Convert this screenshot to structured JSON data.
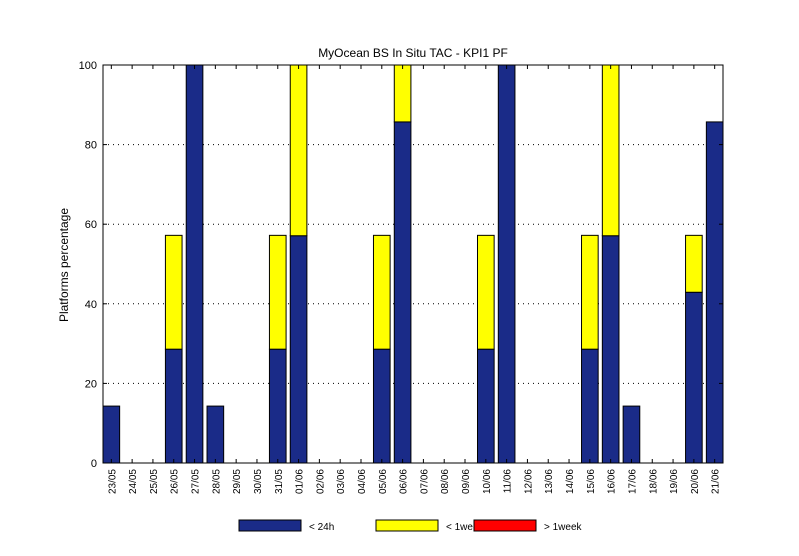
{
  "chart_data": {
    "type": "bar",
    "stacked": true,
    "title": "MyOcean  BS In Situ TAC - KPI1  PF",
    "ylabel": "Platforms percentage",
    "xlabel": "",
    "ylim": [
      0,
      100
    ],
    "yticks": [
      0,
      20,
      40,
      60,
      80,
      100
    ],
    "grid": "horizontal-dotted",
    "legend_position": "bottom",
    "categories": [
      "23/05",
      "24/05",
      "25/05",
      "26/05",
      "27/05",
      "28/05",
      "29/05",
      "30/05",
      "31/05",
      "01/06",
      "02/06",
      "03/06",
      "04/06",
      "05/06",
      "06/06",
      "07/06",
      "08/06",
      "09/06",
      "10/06",
      "11/06",
      "12/06",
      "13/06",
      "14/06",
      "15/06",
      "16/06",
      "17/06",
      "18/06",
      "19/06",
      "20/06",
      "21/06"
    ],
    "series": [
      {
        "name": "< 24h",
        "color": "#1a2b88",
        "values": [
          14.3,
          0,
          0,
          28.6,
          100,
          14.3,
          0,
          0,
          28.6,
          57.1,
          0,
          0,
          0,
          28.6,
          85.7,
          0,
          0,
          0,
          28.6,
          100,
          0,
          0,
          0,
          28.6,
          57.1,
          14.3,
          0,
          0,
          42.9,
          85.7
        ]
      },
      {
        "name": "< 1week",
        "color": "#ffff00",
        "values": [
          0,
          0,
          0,
          28.6,
          0,
          0,
          0,
          0,
          28.6,
          42.9,
          0,
          0,
          0,
          28.6,
          14.3,
          0,
          0,
          0,
          28.6,
          0,
          0,
          0,
          0,
          28.6,
          42.9,
          0,
          0,
          0,
          14.3,
          0
        ]
      },
      {
        "name": "> 1week",
        "color": "#ff0000",
        "values": [
          0,
          0,
          0,
          0,
          0,
          0,
          0,
          0,
          0,
          0,
          0,
          0,
          0,
          0,
          0,
          0,
          0,
          0,
          0,
          0,
          0,
          0,
          0,
          0,
          0,
          0,
          0,
          0,
          0,
          0
        ]
      }
    ]
  }
}
